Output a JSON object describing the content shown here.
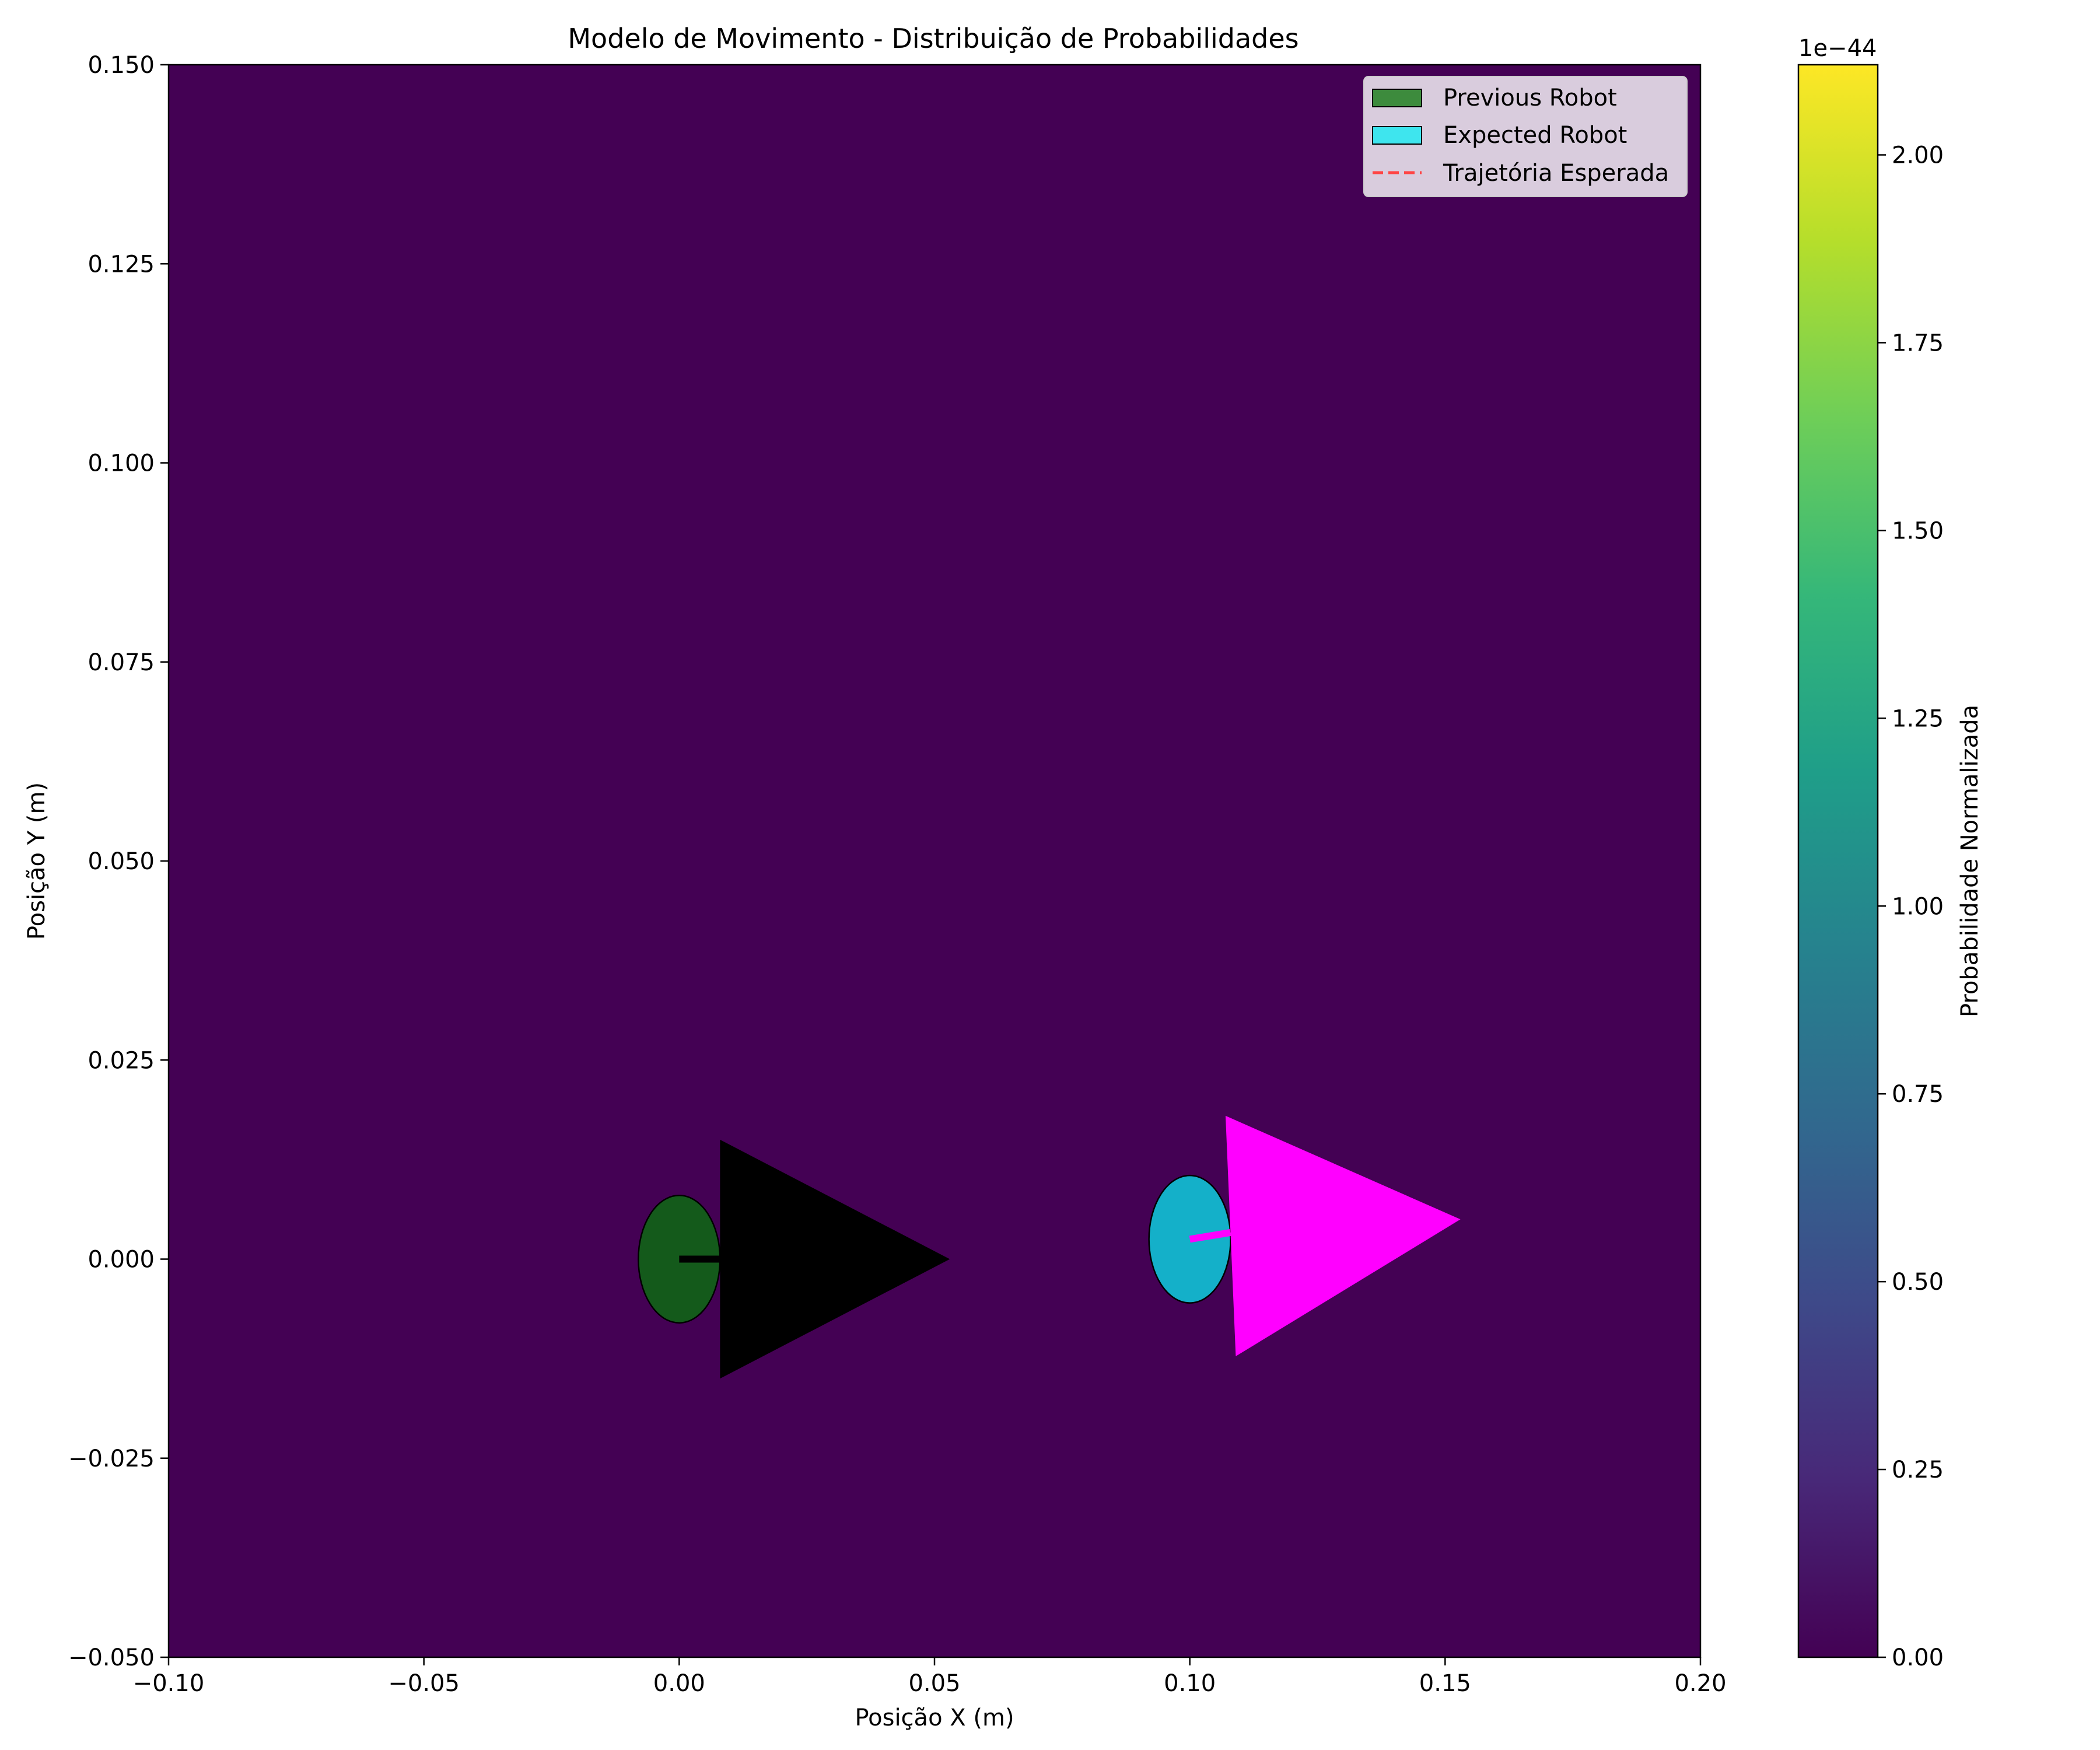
{
  "chart_data": {
    "type": "heatmap",
    "title": "Modelo de Movimento - Distribuição de Probabilidades",
    "xlabel": "Posição X (m)",
    "ylabel": "Posição Y (m)",
    "xlim": [
      -0.1,
      0.2
    ],
    "ylim": [
      -0.05,
      0.15
    ],
    "x_ticks": [
      -0.1,
      -0.05,
      0.0,
      0.05,
      0.1,
      0.15,
      0.2
    ],
    "x_tick_labels": [
      "−0.10",
      "−0.05",
      "0.00",
      "0.05",
      "0.10",
      "0.15",
      "0.20"
    ],
    "y_ticks": [
      -0.05,
      -0.025,
      0.0,
      0.025,
      0.05,
      0.075,
      0.1,
      0.125,
      0.15
    ],
    "y_tick_labels": [
      "−0.050",
      "−0.025",
      "0.000",
      "0.025",
      "0.050",
      "0.075",
      "0.100",
      "0.125",
      "0.150"
    ],
    "grid": false,
    "heatmap": {
      "uniform_value": 0.0,
      "colormap": "viridis",
      "fill_color": "#440154"
    },
    "colorbar": {
      "label": "Probabilidade Normalizada",
      "offset_text": "1e−44",
      "range": [
        0.0,
        2.12
      ],
      "ticks": [
        0.0,
        0.25,
        0.5,
        0.75,
        1.0,
        1.25,
        1.5,
        1.75,
        2.0
      ],
      "tick_labels": [
        "0.00",
        "0.25",
        "0.50",
        "0.75",
        "1.00",
        "1.25",
        "1.50",
        "1.75",
        "2.00"
      ],
      "colors": [
        "#440154",
        "#482878",
        "#3e4989",
        "#31688e",
        "#26828e",
        "#1f9e89",
        "#35b779",
        "#6ece58",
        "#b5de2b",
        "#fde725"
      ]
    },
    "legend": {
      "placement": "top-right",
      "entries": [
        {
          "label": "Previous Robot",
          "kind": "patch",
          "color": "#3d8b3d"
        },
        {
          "label": "Expected Robot",
          "kind": "patch",
          "color": "#3ee5ee"
        },
        {
          "label": "Trajetória Esperada",
          "kind": "dashed-line",
          "color": "#ff4444"
        }
      ]
    },
    "robots": [
      {
        "name": "previous-robot",
        "x": 0.0,
        "y": 0.0,
        "theta_deg": 0,
        "body_rx": 0.008,
        "body_ry": 0.008,
        "body_color": "#145a1b",
        "heading_color": "#000000",
        "arrow_color": "#000000",
        "arrow_tip": [
          0.053,
          0.0
        ],
        "arrow_base": [
          [
            0.008,
            0.015
          ],
          [
            0.008,
            -0.015
          ]
        ]
      },
      {
        "name": "expected-robot",
        "x": 0.1,
        "y": 0.0025,
        "theta_deg": 6,
        "body_rx": 0.008,
        "body_ry": 0.008,
        "body_color": "#14b0c9",
        "heading_color": "#ff00ff",
        "arrow_color": "#ff00ff",
        "arrow_tip": [
          0.153,
          0.005
        ],
        "arrow_base": [
          [
            0.107,
            0.018
          ],
          [
            0.109,
            -0.0122
          ]
        ]
      }
    ]
  }
}
